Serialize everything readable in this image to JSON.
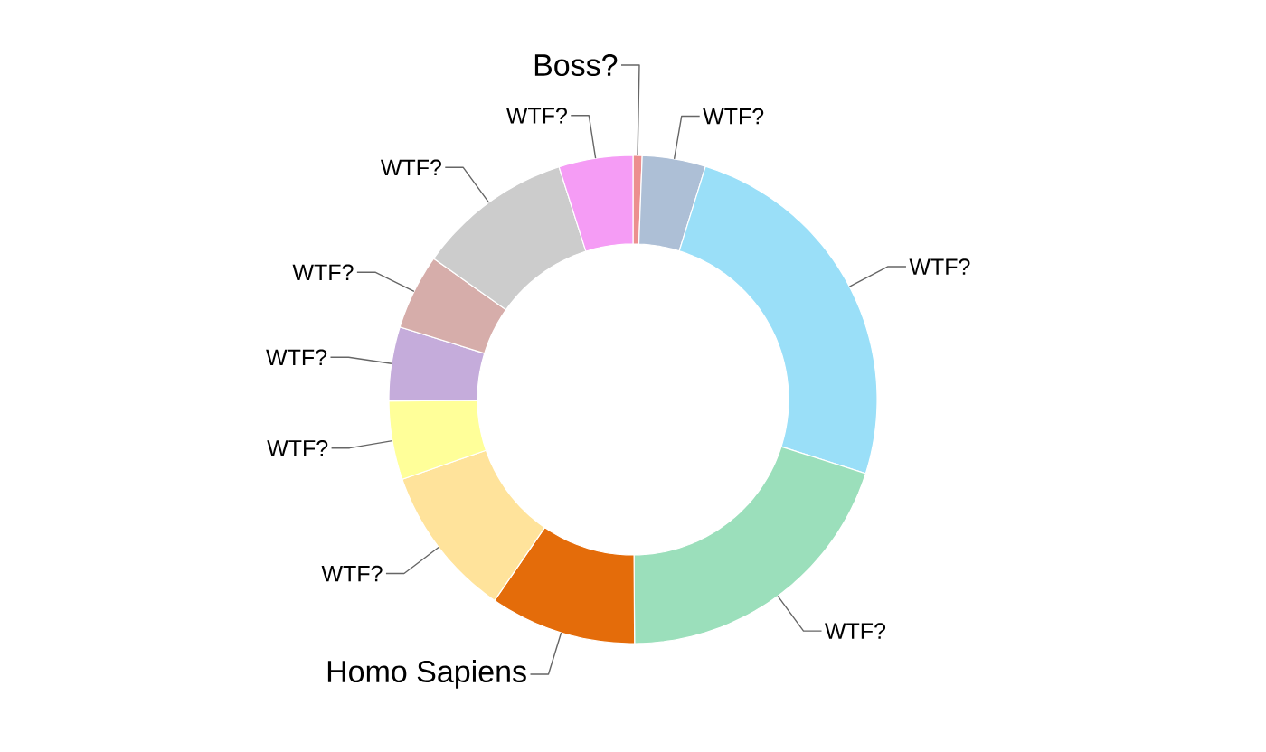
{
  "chart_data": {
    "type": "donut",
    "categories": [
      "Boss?",
      "WTF?",
      "WTF?",
      "WTF?",
      "Homo Sapiens",
      "WTF?",
      "WTF?",
      "WTF?",
      "WTF?",
      "WTF?",
      "WTF?"
    ],
    "values": [
      0.6,
      4.2,
      25.1,
      20,
      9.7,
      10.1,
      5.2,
      4.9,
      5,
      10.3,
      4.9
    ],
    "colors": [
      "#ec8f8f",
      "#adbfd6",
      "#9adff8",
      "#9bdfbb",
      "#e46c0a",
      "#ffe39b",
      "#ffff99",
      "#c5acdb",
      "#d6adaa",
      "#cccccc",
      "#f59cf5"
    ]
  }
}
